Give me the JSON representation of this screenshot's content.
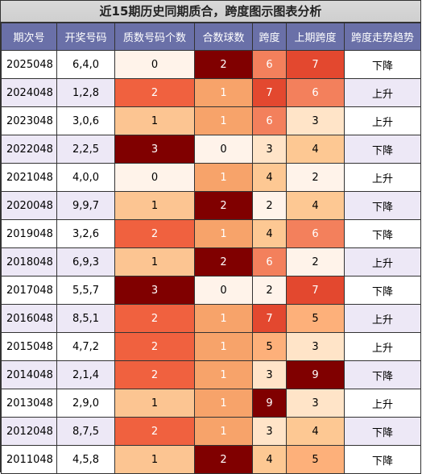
{
  "title": "近15期历史同期质合，跨度图示图表分析",
  "headers": [
    "期次号",
    "开奖号码",
    "质数号码个数",
    "合数球数",
    "跨度",
    "上期跨度",
    "跨度走势趋势"
  ],
  "colors": {
    "header_bg": "#6a70a8",
    "even_row_bg": "#ede8f6",
    "heat_0": "#fff3ea",
    "heat_1": "#fcc592",
    "heat_2": "#f0613f",
    "heat_3": "#800000",
    "cross_2": "#fff3ea",
    "cross_3": "#ffe4c8",
    "cross_4": "#fdc893",
    "cross_5": "#fdb07a",
    "cross_6": "#f3805c",
    "cross_7": "#e3482f",
    "cross_9": "#800000"
  },
  "rows": [
    {
      "period": "2025048",
      "numbers": "6,4,0",
      "prime": "0",
      "composite": "2",
      "span": "6",
      "prev_span": "7",
      "trend": "下降"
    },
    {
      "period": "2024048",
      "numbers": "1,2,8",
      "prime": "2",
      "composite": "1",
      "span": "7",
      "prev_span": "6",
      "trend": "上升"
    },
    {
      "period": "2023048",
      "numbers": "3,0,6",
      "prime": "1",
      "composite": "1",
      "span": "6",
      "prev_span": "3",
      "trend": "上升"
    },
    {
      "period": "2022048",
      "numbers": "2,2,5",
      "prime": "3",
      "composite": "0",
      "span": "3",
      "prev_span": "4",
      "trend": "下降"
    },
    {
      "period": "2021048",
      "numbers": "4,0,0",
      "prime": "0",
      "composite": "1",
      "span": "4",
      "prev_span": "2",
      "trend": "上升"
    },
    {
      "period": "2020048",
      "numbers": "9,9,7",
      "prime": "1",
      "composite": "2",
      "span": "2",
      "prev_span": "4",
      "trend": "下降"
    },
    {
      "period": "2019048",
      "numbers": "3,2,6",
      "prime": "2",
      "composite": "1",
      "span": "4",
      "prev_span": "6",
      "trend": "下降"
    },
    {
      "period": "2018048",
      "numbers": "6,9,3",
      "prime": "1",
      "composite": "2",
      "span": "6",
      "prev_span": "2",
      "trend": "上升"
    },
    {
      "period": "2017048",
      "numbers": "5,5,7",
      "prime": "3",
      "composite": "0",
      "span": "2",
      "prev_span": "7",
      "trend": "下降"
    },
    {
      "period": "2016048",
      "numbers": "8,5,1",
      "prime": "2",
      "composite": "1",
      "span": "7",
      "prev_span": "5",
      "trend": "上升"
    },
    {
      "period": "2015048",
      "numbers": "4,7,2",
      "prime": "2",
      "composite": "1",
      "span": "5",
      "prev_span": "3",
      "trend": "上升"
    },
    {
      "period": "2014048",
      "numbers": "2,1,4",
      "prime": "2",
      "composite": "1",
      "span": "3",
      "prev_span": "9",
      "trend": "下降"
    },
    {
      "period": "2013048",
      "numbers": "2,9,0",
      "prime": "1",
      "composite": "1",
      "span": "9",
      "prev_span": "3",
      "trend": "上升"
    },
    {
      "period": "2012048",
      "numbers": "8,7,5",
      "prime": "2",
      "composite": "1",
      "span": "3",
      "prev_span": "4",
      "trend": "下降"
    },
    {
      "period": "2011048",
      "numbers": "4,5,8",
      "prime": "1",
      "composite": "2",
      "span": "4",
      "prev_span": "5",
      "trend": "下降"
    }
  ]
}
